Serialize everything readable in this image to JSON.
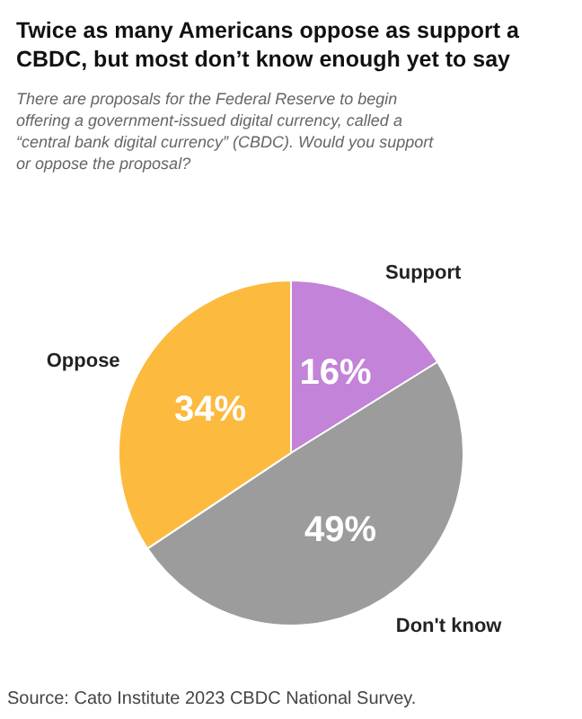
{
  "chart_data": {
    "type": "pie",
    "title": "Twice as many Americans oppose as support a CBDC, but most don’t know enough yet to say",
    "subtitle": "There are proposals for the Federal Reserve to begin offering a government-issued digital currency, called a “central bank digital currency” (CBDC). Would you support or oppose the proposal?",
    "categories": [
      "Support",
      "Don't know",
      "Oppose"
    ],
    "values": [
      16,
      49,
      34
    ],
    "colors": [
      "#c383d8",
      "#9c9c9c",
      "#fcba3f"
    ],
    "value_labels": [
      "16%",
      "49%",
      "34%"
    ],
    "annotations": [
      "Source: Cato Institute 2023 CBDC National Survey."
    ],
    "legend": false
  }
}
